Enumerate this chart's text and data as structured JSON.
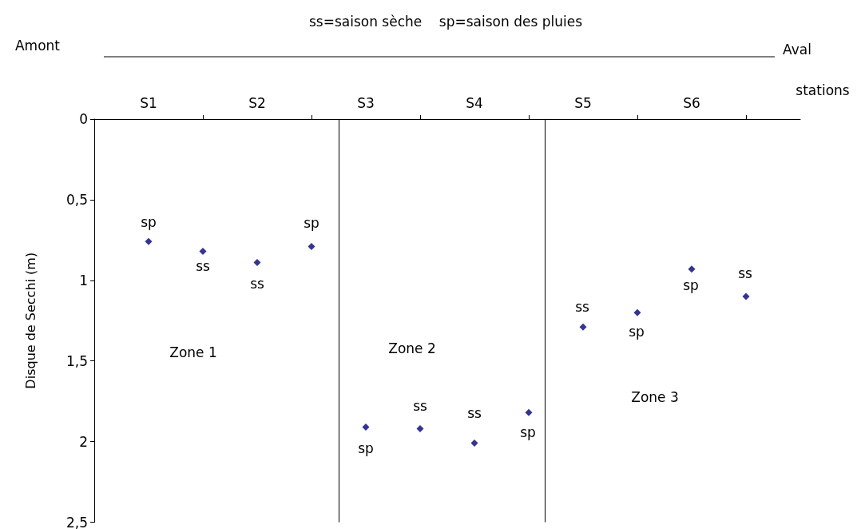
{
  "chart_data": {
    "type": "scatter",
    "title": "ss=saison sèche    sp=saison des pluies",
    "xlabel": "stations",
    "ylabel": "Disque de Secchi (m)",
    "categories": [
      null,
      "S1",
      null,
      "S2",
      null,
      "S3",
      null,
      "S4",
      null,
      "S5",
      null,
      "S6",
      null,
      null
    ],
    "series": [
      {
        "color": "#000080",
        "values": [
          null,
          0.76,
          0.82,
          0.89,
          0.79,
          1.91,
          1.92,
          2.01,
          1.82,
          1.29,
          1.2,
          0.93,
          1.1,
          null
        ]
      }
    ],
    "ylim": [
      2.5,
      0
    ],
    "yticks": [
      0,
      {
        "value": 0.5,
        "label": "0,5"
      },
      1,
      {
        "value": 1.5,
        "label": "1,5"
      },
      2,
      {
        "value": 2.5,
        "label": "2,5"
      }
    ],
    "marker": "diamond",
    "grid": false,
    "annotations": [
      "Amont",
      "Aval",
      "Zone 1",
      "Zone 2",
      "Zone 3",
      "sp",
      "ss",
      "ss",
      "sp",
      "sp",
      "ss",
      "ss",
      "sp",
      "ss",
      "sp",
      "sp",
      "ss"
    ]
  }
}
